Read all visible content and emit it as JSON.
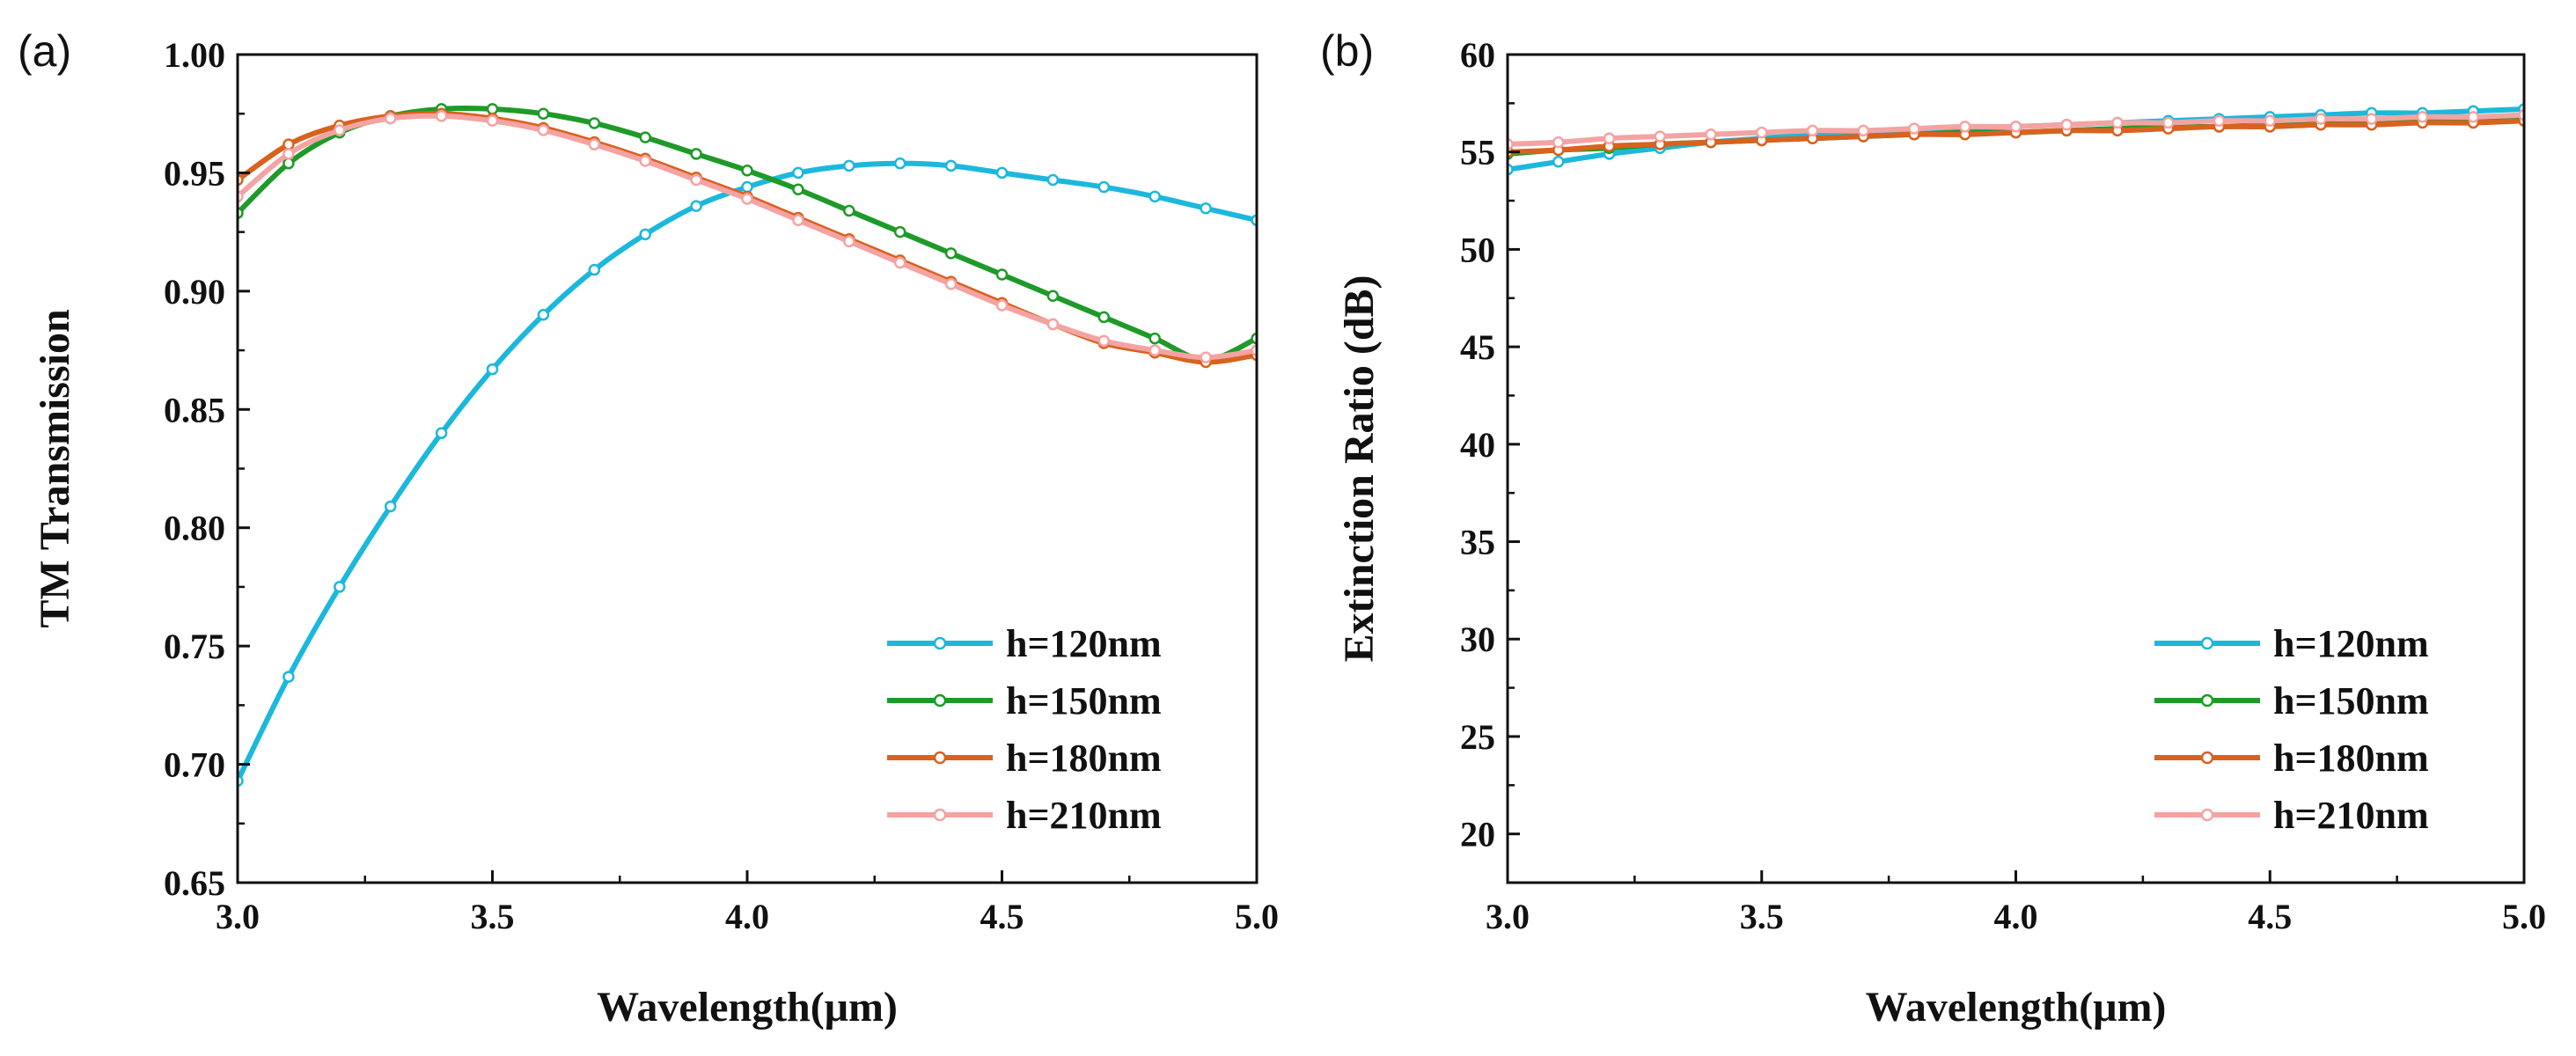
{
  "chart_data": [
    {
      "type": "line",
      "panel_label": "(a)",
      "xlabel": "Wavelength(μm)",
      "ylabel": "TM Transmission",
      "xlim": [
        3.0,
        5.0
      ],
      "ylim": [
        0.65,
        1.0
      ],
      "xticks": [
        "3.0",
        "3.5",
        "4.0",
        "4.5",
        "5.0"
      ],
      "yticks": [
        "0.65",
        "0.70",
        "0.75",
        "0.80",
        "0.85",
        "0.90",
        "0.95",
        "1.00"
      ],
      "x": [
        3.0,
        3.1,
        3.2,
        3.3,
        3.4,
        3.5,
        3.6,
        3.7,
        3.8,
        3.9,
        4.0,
        4.1,
        4.2,
        4.3,
        4.4,
        4.5,
        4.6,
        4.7,
        4.8,
        4.9,
        5.0
      ],
      "legend_position": "bottom-right",
      "grid": false,
      "series": [
        {
          "name": "h=120nm",
          "color": "#1cb8dc",
          "values": [
            0.693,
            0.737,
            0.775,
            0.809,
            0.84,
            0.867,
            0.89,
            0.909,
            0.924,
            0.936,
            0.944,
            0.95,
            0.953,
            0.954,
            0.953,
            0.95,
            0.947,
            0.944,
            0.94,
            0.935,
            0.93
          ]
        },
        {
          "name": "h=150nm",
          "color": "#1e9a28",
          "values": [
            0.933,
            0.954,
            0.967,
            0.974,
            0.977,
            0.977,
            0.975,
            0.971,
            0.965,
            0.958,
            0.951,
            0.943,
            0.934,
            0.925,
            0.916,
            0.907,
            0.898,
            0.889,
            0.88,
            0.871,
            0.88
          ]
        },
        {
          "name": "h=180nm",
          "color": "#d8621e",
          "values": [
            0.947,
            0.962,
            0.97,
            0.974,
            0.975,
            0.973,
            0.969,
            0.963,
            0.956,
            0.948,
            0.94,
            0.931,
            0.922,
            0.913,
            0.904,
            0.895,
            0.886,
            0.878,
            0.874,
            0.87,
            0.873
          ]
        },
        {
          "name": "h=210nm",
          "color": "#f4a3a3",
          "values": [
            0.94,
            0.958,
            0.968,
            0.973,
            0.974,
            0.972,
            0.968,
            0.962,
            0.955,
            0.947,
            0.939,
            0.93,
            0.921,
            0.912,
            0.903,
            0.894,
            0.886,
            0.879,
            0.875,
            0.872,
            0.875
          ]
        }
      ]
    },
    {
      "type": "line",
      "panel_label": "(b)",
      "xlabel": "Wavelength(μm)",
      "ylabel": "Extinction Ratio (dB)",
      "xlim": [
        3.0,
        5.0
      ],
      "ylim": [
        17.5,
        60
      ],
      "xticks": [
        "3.0",
        "3.5",
        "4.0",
        "4.5",
        "5.0"
      ],
      "yticks": [
        "20",
        "25",
        "30",
        "35",
        "40",
        "45",
        "50",
        "55",
        "60"
      ],
      "x": [
        3.0,
        3.1,
        3.2,
        3.3,
        3.4,
        3.5,
        3.6,
        3.7,
        3.8,
        3.9,
        4.0,
        4.1,
        4.2,
        4.3,
        4.4,
        4.5,
        4.6,
        4.7,
        4.8,
        4.9,
        5.0
      ],
      "legend_position": "bottom-right",
      "grid": false,
      "series": [
        {
          "name": "h=120nm",
          "color": "#1cb8dc",
          "values": [
            54.1,
            54.5,
            54.9,
            55.2,
            55.5,
            55.7,
            55.9,
            56.0,
            56.1,
            56.2,
            56.3,
            56.4,
            56.5,
            56.6,
            56.7,
            56.8,
            56.9,
            57.0,
            57.0,
            57.1,
            57.2
          ]
        },
        {
          "name": "h=150nm",
          "color": "#1e9a28",
          "values": [
            54.9,
            55.1,
            55.2,
            55.4,
            55.5,
            55.6,
            55.7,
            55.8,
            55.9,
            56.0,
            56.0,
            56.1,
            56.2,
            56.3,
            56.3,
            56.4,
            56.5,
            56.5,
            56.6,
            56.6,
            56.7
          ]
        },
        {
          "name": "h=180nm",
          "color": "#d8621e",
          "values": [
            55.0,
            55.1,
            55.3,
            55.4,
            55.5,
            55.6,
            55.7,
            55.8,
            55.9,
            55.9,
            56.0,
            56.1,
            56.1,
            56.2,
            56.3,
            56.3,
            56.4,
            56.4,
            56.5,
            56.5,
            56.6
          ]
        },
        {
          "name": "h=210nm",
          "color": "#f4a3a3",
          "values": [
            55.4,
            55.5,
            55.7,
            55.8,
            55.9,
            56.0,
            56.1,
            56.1,
            56.2,
            56.3,
            56.3,
            56.4,
            56.5,
            56.5,
            56.6,
            56.6,
            56.7,
            56.7,
            56.8,
            56.8,
            56.9
          ]
        }
      ]
    }
  ]
}
